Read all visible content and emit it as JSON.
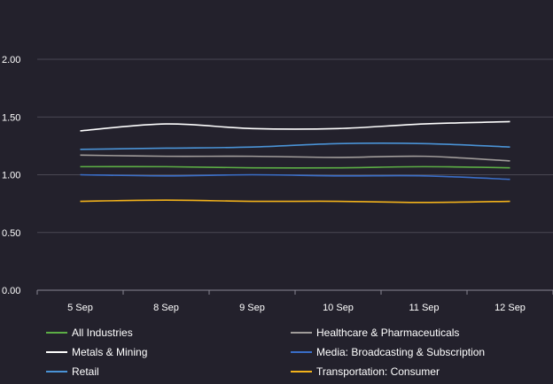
{
  "chart_data": {
    "type": "line",
    "categories": [
      "5 Sep",
      "8 Sep",
      "9 Sep",
      "10 Sep",
      "11 Sep",
      "12 Sep"
    ],
    "ylim": [
      0,
      2.0
    ],
    "yticks": [
      "0.00",
      "0.50",
      "1.00",
      "1.50",
      "2.00"
    ],
    "grid": true,
    "legend_position": "bottom",
    "series": [
      {
        "name": "All Industries",
        "color": "#5cae45",
        "values": [
          1.07,
          1.07,
          1.06,
          1.06,
          1.07,
          1.06
        ]
      },
      {
        "name": "Healthcare & Pharmaceuticals",
        "color": "#a09c9a",
        "values": [
          1.17,
          1.16,
          1.16,
          1.15,
          1.16,
          1.12
        ]
      },
      {
        "name": "Metals & Mining",
        "color": "#ffffff",
        "values": [
          1.38,
          1.44,
          1.4,
          1.4,
          1.44,
          1.46
        ]
      },
      {
        "name": "Media: Broadcasting & Subscription",
        "color": "#3a6ec8",
        "values": [
          1.0,
          0.99,
          1.0,
          0.99,
          0.99,
          0.96
        ]
      },
      {
        "name": "Retail",
        "color": "#4a93d6",
        "values": [
          1.22,
          1.23,
          1.24,
          1.27,
          1.27,
          1.24
        ]
      },
      {
        "name": "Transportation: Consumer",
        "color": "#f2b21b",
        "values": [
          0.77,
          0.78,
          0.77,
          0.77,
          0.76,
          0.77
        ]
      }
    ]
  }
}
